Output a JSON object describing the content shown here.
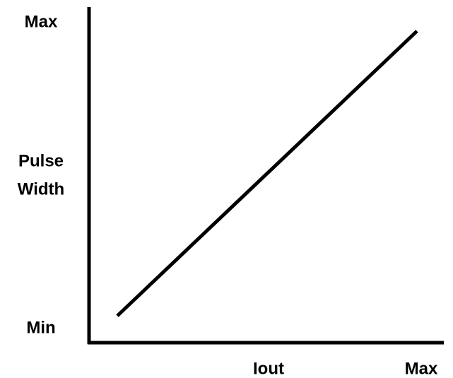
{
  "y_axis": {
    "max_label": "Max",
    "title_lines": [
      "Pulse",
      "Width"
    ],
    "min_label": "Min"
  },
  "x_axis": {
    "title": "Iout",
    "max_label": "Max"
  }
}
